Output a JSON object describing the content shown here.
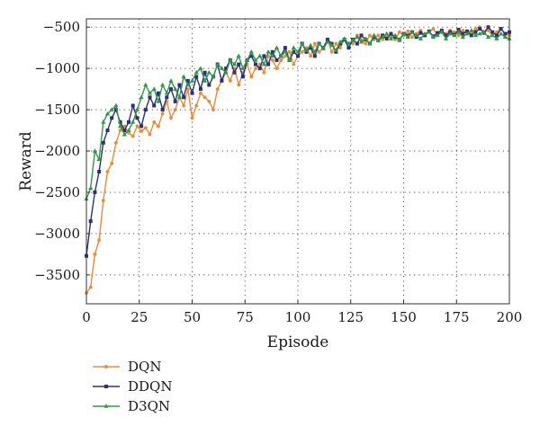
{
  "chart_data": {
    "type": "line",
    "title": "",
    "xlabel": "Episode",
    "ylabel": "Reward",
    "xlim": [
      0,
      200
    ],
    "ylim": [
      -3850,
      -400
    ],
    "xticks": [
      0,
      25,
      50,
      75,
      100,
      125,
      150,
      175,
      200
    ],
    "yticks": [
      -3500,
      -3000,
      -2500,
      -2000,
      -1500,
      -1000,
      -500
    ],
    "xtick_labels": [
      "0",
      "25",
      "50",
      "75",
      "100",
      "125",
      "150",
      "175",
      "200"
    ],
    "ytick_labels": [
      "−3500",
      "−3000",
      "−2500",
      "−2000",
      "−1500",
      "−1000",
      "−500"
    ],
    "grid": true,
    "legend_position": "below-left",
    "series": [
      {
        "name": "DQN",
        "color": "#f08a32",
        "marker": "circle",
        "x": [
          0,
          2,
          4,
          6,
          8,
          10,
          12,
          14,
          16,
          18,
          20,
          22,
          24,
          26,
          28,
          30,
          32,
          34,
          36,
          38,
          40,
          42,
          44,
          46,
          48,
          50,
          52,
          54,
          56,
          58,
          60,
          62,
          64,
          66,
          68,
          70,
          72,
          74,
          76,
          78,
          80,
          82,
          84,
          86,
          88,
          90,
          92,
          94,
          96,
          98,
          100,
          102,
          104,
          106,
          108,
          110,
          112,
          114,
          116,
          118,
          120,
          122,
          124,
          126,
          128,
          130,
          132,
          134,
          136,
          138,
          140,
          142,
          144,
          146,
          148,
          150,
          152,
          154,
          156,
          158,
          160,
          162,
          164,
          166,
          168,
          170,
          172,
          174,
          176,
          178,
          180,
          182,
          184,
          186,
          188,
          190,
          192,
          194,
          196,
          198,
          200
        ],
        "values": [
          -3720,
          -3650,
          -3250,
          -3080,
          -2600,
          -2250,
          -2150,
          -1900,
          -1750,
          -1700,
          -1780,
          -1820,
          -1700,
          -1760,
          -1720,
          -1800,
          -1650,
          -1700,
          -1550,
          -1400,
          -1600,
          -1500,
          -1350,
          -1450,
          -1250,
          -1600,
          -1450,
          -1300,
          -1350,
          -1400,
          -1500,
          -1250,
          -1150,
          -1050,
          -1150,
          -1000,
          -1200,
          -1050,
          -950,
          -1100,
          -1000,
          -950,
          -1050,
          -850,
          -900,
          -1000,
          -900,
          -850,
          -800,
          -950,
          -850,
          -800,
          -750,
          -850,
          -700,
          -800,
          -750,
          -650,
          -800,
          -700,
          -750,
          -650,
          -700,
          -700,
          -600,
          -650,
          -700,
          -600,
          -650,
          -600,
          -650,
          -600,
          -600,
          -650,
          -560,
          -600,
          -550,
          -620,
          -580,
          -540,
          -600,
          -560,
          -520,
          -600,
          -550,
          -580,
          -540,
          -560,
          -600,
          -540,
          -580,
          -560,
          -520,
          -500,
          -560,
          -540,
          -600,
          -560,
          -520,
          -580,
          -600
        ]
      },
      {
        "name": "DDQN",
        "color": "#2d2e7e",
        "marker": "square",
        "x": [
          0,
          2,
          4,
          6,
          8,
          10,
          12,
          14,
          16,
          18,
          20,
          22,
          24,
          26,
          28,
          30,
          32,
          34,
          36,
          38,
          40,
          42,
          44,
          46,
          48,
          50,
          52,
          54,
          56,
          58,
          60,
          62,
          64,
          66,
          68,
          70,
          72,
          74,
          76,
          78,
          80,
          82,
          84,
          86,
          88,
          90,
          92,
          94,
          96,
          98,
          100,
          102,
          104,
          106,
          108,
          110,
          112,
          114,
          116,
          118,
          120,
          122,
          124,
          126,
          128,
          130,
          132,
          134,
          136,
          138,
          140,
          142,
          144,
          146,
          148,
          150,
          152,
          154,
          156,
          158,
          160,
          162,
          164,
          166,
          168,
          170,
          172,
          174,
          176,
          178,
          180,
          182,
          184,
          186,
          188,
          190,
          192,
          194,
          196,
          198,
          200
        ],
        "values": [
          -3270,
          -2850,
          -2500,
          -2250,
          -1900,
          -1750,
          -1600,
          -1500,
          -1650,
          -1750,
          -1650,
          -1450,
          -1600,
          -1700,
          -1500,
          -1350,
          -1450,
          -1300,
          -1500,
          -1350,
          -1250,
          -1400,
          -1200,
          -1350,
          -1150,
          -1300,
          -1100,
          -1250,
          -1050,
          -1200,
          -1100,
          -950,
          -1150,
          -1000,
          -900,
          -1050,
          -950,
          -1100,
          -900,
          -850,
          -950,
          -1000,
          -850,
          -950,
          -800,
          -900,
          -850,
          -750,
          -900,
          -800,
          -850,
          -700,
          -800,
          -750,
          -850,
          -700,
          -750,
          -650,
          -700,
          -800,
          -700,
          -650,
          -750,
          -650,
          -700,
          -600,
          -650,
          -700,
          -620,
          -660,
          -600,
          -640,
          -580,
          -620,
          -650,
          -580,
          -600,
          -560,
          -620,
          -570,
          -600,
          -550,
          -610,
          -570,
          -540,
          -600,
          -560,
          -590,
          -530,
          -580,
          -550,
          -600,
          -560,
          -520,
          -570,
          -500,
          -560,
          -600,
          -520,
          -580,
          -560
        ]
      },
      {
        "name": "D3QN",
        "color": "#2f9a46",
        "marker": "triangle",
        "x": [
          0,
          2,
          4,
          6,
          8,
          10,
          12,
          14,
          16,
          18,
          20,
          22,
          24,
          26,
          28,
          30,
          32,
          34,
          36,
          38,
          40,
          42,
          44,
          46,
          48,
          50,
          52,
          54,
          56,
          58,
          60,
          62,
          64,
          66,
          68,
          70,
          72,
          74,
          76,
          78,
          80,
          82,
          84,
          86,
          88,
          90,
          92,
          94,
          96,
          98,
          100,
          102,
          104,
          106,
          108,
          110,
          112,
          114,
          116,
          118,
          120,
          122,
          124,
          126,
          128,
          130,
          132,
          134,
          136,
          138,
          140,
          142,
          144,
          146,
          148,
          150,
          152,
          154,
          156,
          158,
          160,
          162,
          164,
          166,
          168,
          170,
          172,
          174,
          176,
          178,
          180,
          182,
          184,
          186,
          188,
          190,
          192,
          194,
          196,
          198,
          200
        ],
        "values": [
          -2580,
          -2450,
          -2000,
          -2100,
          -1650,
          -1550,
          -1500,
          -1450,
          -1700,
          -1800,
          -1750,
          -1650,
          -1500,
          -1350,
          -1200,
          -1300,
          -1250,
          -1400,
          -1200,
          -1300,
          -1150,
          -1250,
          -1350,
          -1100,
          -1200,
          -1150,
          -1050,
          -1000,
          -1150,
          -1050,
          -1100,
          -950,
          -1000,
          -1050,
          -900,
          -950,
          -850,
          -1000,
          -900,
          -800,
          -900,
          -850,
          -950,
          -800,
          -850,
          -750,
          -850,
          -800,
          -900,
          -750,
          -800,
          -700,
          -780,
          -720,
          -800,
          -700,
          -760,
          -680,
          -720,
          -780,
          -680,
          -640,
          -700,
          -660,
          -620,
          -680,
          -640,
          -700,
          -600,
          -660,
          -620,
          -580,
          -640,
          -600,
          -660,
          -580,
          -620,
          -560,
          -600,
          -640,
          -580,
          -560,
          -620,
          -600,
          -560,
          -640,
          -580,
          -600,
          -560,
          -620,
          -580,
          -540,
          -600,
          -580,
          -560,
          -620,
          -600,
          -640,
          -580,
          -620,
          -640
        ]
      }
    ]
  }
}
